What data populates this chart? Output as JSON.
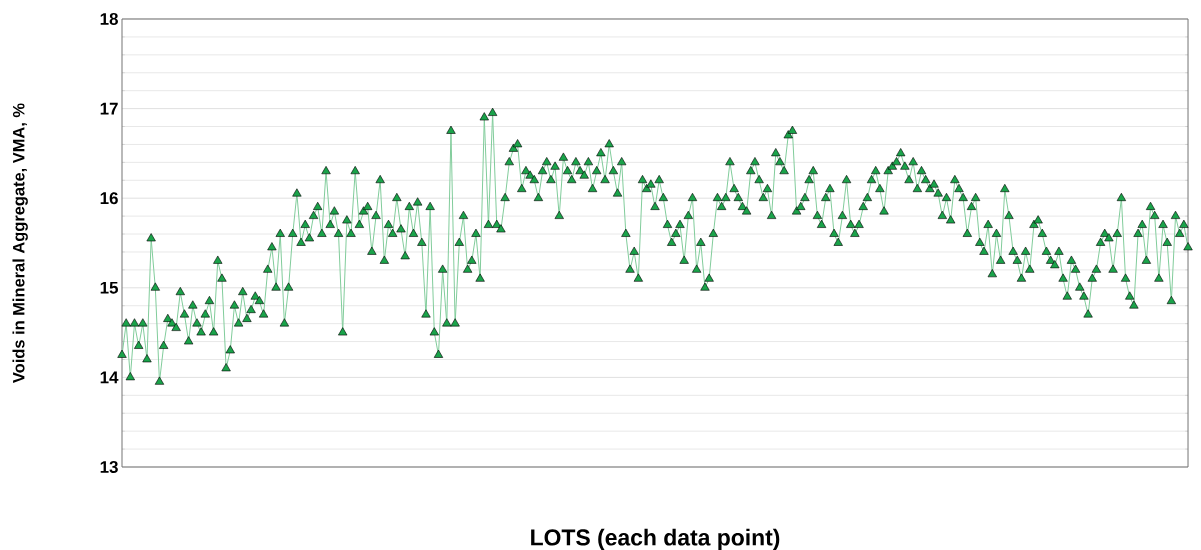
{
  "chart_data": {
    "type": "line",
    "xlabel": "LOTS (each data point)",
    "ylabel": "Voids in Mineral Aggregate, VMA, %",
    "ylim": [
      13,
      18
    ],
    "yticks": [
      13,
      14,
      15,
      16,
      17,
      18
    ],
    "grid": "y",
    "tick_labels": "y",
    "marker": "triangle",
    "line_style": "solid",
    "categories": [
      null,
      null,
      null,
      null,
      null,
      null,
      null,
      null,
      null,
      null,
      null,
      null,
      null,
      null,
      null,
      null,
      null,
      null,
      null,
      null,
      null,
      null,
      null,
      null,
      null,
      null,
      null,
      null,
      null,
      null,
      null,
      null,
      null,
      null,
      null,
      null,
      null,
      null,
      null,
      null,
      null,
      null,
      null,
      null,
      null,
      null,
      null,
      null,
      null,
      null,
      null,
      null,
      null,
      null,
      null,
      null,
      null,
      null,
      null,
      null,
      null,
      null,
      null,
      null,
      null,
      null,
      null,
      null,
      null,
      null,
      null,
      null,
      null,
      null,
      null,
      null,
      null,
      null,
      null,
      null,
      null,
      null,
      null,
      null,
      null,
      null,
      null,
      null,
      null,
      null,
      null,
      null,
      null,
      null,
      null,
      null,
      null,
      null,
      null,
      null,
      null,
      null,
      null,
      null,
      null,
      null,
      null,
      null,
      null,
      null,
      null,
      null,
      null,
      null,
      null,
      null,
      null,
      null,
      null,
      null,
      null,
      null,
      null,
      null,
      null,
      null,
      null,
      null,
      null,
      null,
      null,
      null,
      null,
      null,
      null,
      null,
      null,
      null,
      null,
      null,
      null,
      null,
      null,
      null,
      null,
      null,
      null,
      null,
      null,
      null,
      null,
      null,
      null,
      null,
      null,
      null,
      null,
      null,
      null,
      null,
      null,
      null,
      null,
      null,
      null,
      null,
      null,
      null,
      null,
      null,
      null,
      null,
      null,
      null,
      null,
      null,
      null,
      null,
      null,
      null,
      null,
      null,
      null,
      null,
      null,
      null,
      null,
      null,
      null,
      null,
      null,
      null,
      null,
      null,
      null,
      null,
      null,
      null,
      null,
      null,
      null,
      null,
      null,
      null,
      null,
      null,
      null,
      null,
      null,
      null,
      null,
      null,
      null,
      null,
      null,
      null,
      null,
      null,
      null,
      null,
      null,
      null,
      null,
      null,
      null,
      null,
      null,
      null,
      null,
      null,
      null,
      null,
      null,
      null,
      null,
      null,
      null,
      null,
      null,
      null,
      null,
      null,
      null,
      null,
      null,
      null,
      null,
      null,
      null,
      null,
      null,
      null,
      null,
      null,
      null,
      null,
      null
    ],
    "series": [
      {
        "color": "#1aa34a",
        "values": [
          14.25,
          14.6,
          14.0,
          14.6,
          14.35,
          14.6,
          14.2,
          15.55,
          15.0,
          13.95,
          14.35,
          14.65,
          14.6,
          14.55,
          14.95,
          14.7,
          14.4,
          14.8,
          14.6,
          14.5,
          14.7,
          14.85,
          14.5,
          15.3,
          15.1,
          14.1,
          14.3,
          14.8,
          14.6,
          14.95,
          14.65,
          14.75,
          14.9,
          14.85,
          14.7,
          15.2,
          15.45,
          15.0,
          15.6,
          14.6,
          15.0,
          15.6,
          16.05,
          15.5,
          15.7,
          15.55,
          15.8,
          15.9,
          15.6,
          16.3,
          15.7,
          15.85,
          15.6,
          14.5,
          15.75,
          15.6,
          16.3,
          15.7,
          15.85,
          15.9,
          15.4,
          15.8,
          16.2,
          15.3,
          15.7,
          15.6,
          16.0,
          15.65,
          15.35,
          15.9,
          15.6,
          15.95,
          15.5,
          14.7,
          15.9,
          14.5,
          14.25,
          15.2,
          14.6,
          16.75,
          14.6,
          15.5,
          15.8,
          15.2,
          15.3,
          15.6,
          15.1,
          16.9,
          15.7,
          16.95,
          15.7,
          15.65,
          16.0,
          16.4,
          16.55,
          16.6,
          16.1,
          16.3,
          16.25,
          16.2,
          16.0,
          16.3,
          16.4,
          16.2,
          16.35,
          15.8,
          16.45,
          16.3,
          16.2,
          16.4,
          16.3,
          16.25,
          16.4,
          16.1,
          16.3,
          16.5,
          16.2,
          16.6,
          16.3,
          16.05,
          16.4,
          15.6,
          15.2,
          15.4,
          15.1,
          16.2,
          16.1,
          16.15,
          15.9,
          16.2,
          16.0,
          15.7,
          15.5,
          15.6,
          15.7,
          15.3,
          15.8,
          16.0,
          15.2,
          15.5,
          15.0,
          15.1,
          15.6,
          16.0,
          15.9,
          16.0,
          16.4,
          16.1,
          16.0,
          15.9,
          15.85,
          16.3,
          16.4,
          16.2,
          16.0,
          16.1,
          15.8,
          16.5,
          16.4,
          16.3,
          16.7,
          16.75,
          15.85,
          15.9,
          16.0,
          16.2,
          16.3,
          15.8,
          15.7,
          16.0,
          16.1,
          15.6,
          15.5,
          15.8,
          16.2,
          15.7,
          15.6,
          15.7,
          15.9,
          16.0,
          16.2,
          16.3,
          16.1,
          15.85,
          16.3,
          16.35,
          16.4,
          16.5,
          16.35,
          16.2,
          16.4,
          16.1,
          16.3,
          16.2,
          16.1,
          16.15,
          16.05,
          15.8,
          16.0,
          15.75,
          16.2,
          16.1,
          16.0,
          15.6,
          15.9,
          16.0,
          15.5,
          15.4,
          15.7,
          15.15,
          15.6,
          15.3,
          16.1,
          15.8,
          15.4,
          15.3,
          15.1,
          15.4,
          15.2,
          15.7,
          15.75,
          15.6,
          15.4,
          15.3,
          15.25,
          15.4,
          15.1,
          14.9,
          15.3,
          15.2,
          15.0,
          14.9,
          14.7,
          15.1,
          15.2,
          15.5,
          15.6,
          15.55,
          15.2,
          15.6,
          16.0,
          15.1,
          14.9,
          14.8,
          15.6,
          15.7,
          15.3,
          15.9,
          15.8,
          15.1,
          15.7,
          15.5,
          14.85,
          15.8,
          15.6,
          15.7,
          15.45
        ]
      }
    ]
  }
}
